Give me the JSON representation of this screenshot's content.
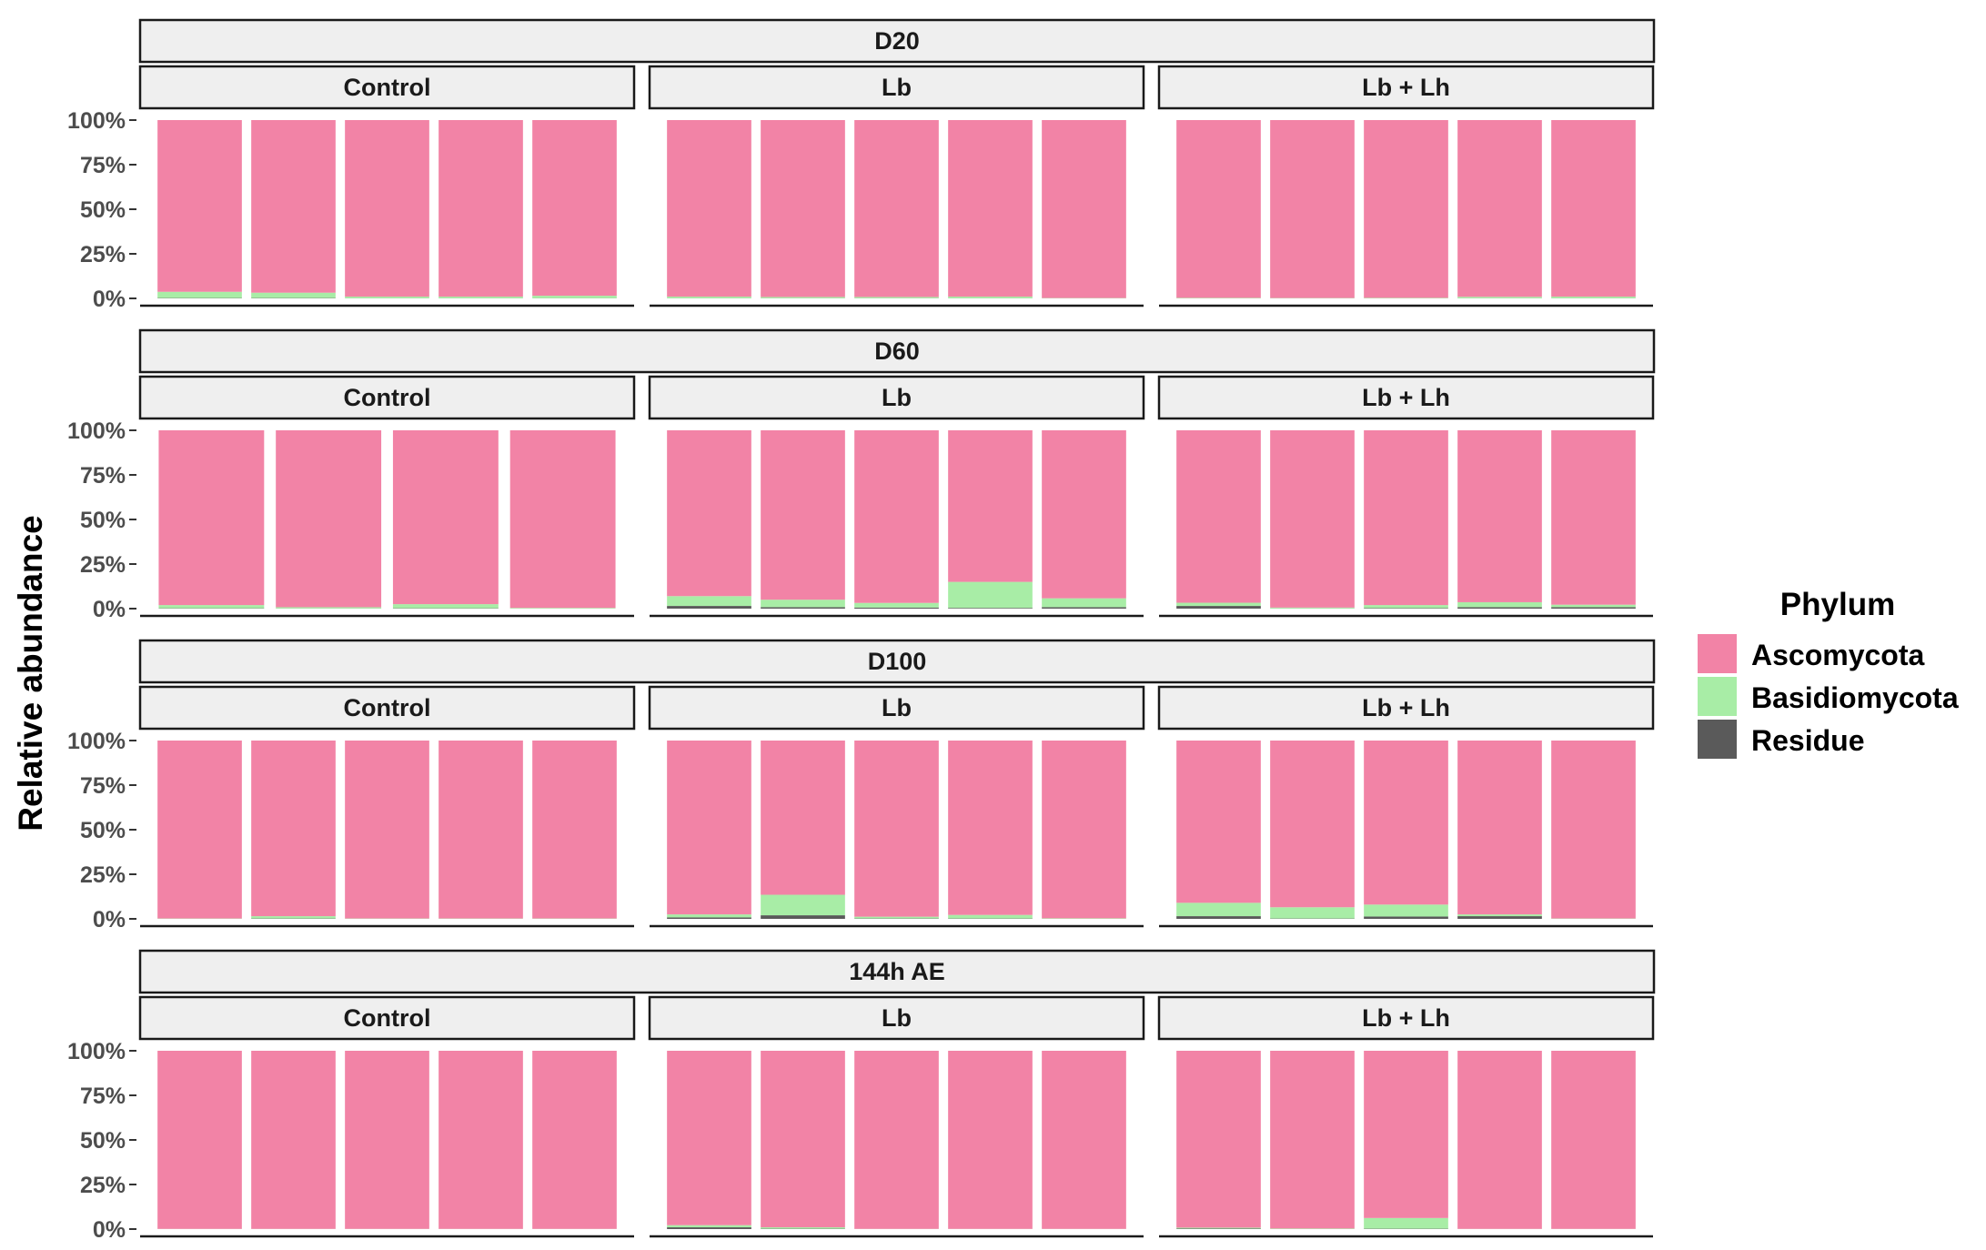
{
  "chart_data": {
    "type": "bar",
    "stacked": true,
    "ylabel": "Relative abundance",
    "ylim": [
      0,
      100
    ],
    "yticks": [
      "0%",
      "25%",
      "50%",
      "75%",
      "100%"
    ],
    "legend": {
      "title": "Phylum",
      "position": "right",
      "entries": [
        {
          "name": "Ascomycota",
          "color": "#F283A6"
        },
        {
          "name": "Basidiomycota",
          "color": "#A8EDA6"
        },
        {
          "name": "Residue",
          "color": "#5A5A5A"
        }
      ]
    },
    "series_order": [
      "Residue",
      "Basidiomycota",
      "Ascomycota"
    ],
    "colors": {
      "Ascomycota": "#F283A6",
      "Basidiomycota": "#A8EDA6",
      "Residue": "#5A5A5A"
    },
    "timepoints": [
      {
        "label": "D20",
        "groups": [
          {
            "label": "Control",
            "bars": [
              {
                "Residue": 0.2,
                "Basidiomycota": 3.5,
                "Ascomycota": 96.3
              },
              {
                "Residue": 0.2,
                "Basidiomycota": 3.0,
                "Ascomycota": 96.8
              },
              {
                "Residue": 0.1,
                "Basidiomycota": 0.9,
                "Ascomycota": 99.0
              },
              {
                "Residue": 0.1,
                "Basidiomycota": 0.9,
                "Ascomycota": 99.0
              },
              {
                "Residue": 0.1,
                "Basidiomycota": 1.4,
                "Ascomycota": 98.5
              }
            ]
          },
          {
            "label": "Lb",
            "bars": [
              {
                "Residue": 0.1,
                "Basidiomycota": 0.9,
                "Ascomycota": 99.0
              },
              {
                "Residue": 0.1,
                "Basidiomycota": 0.7,
                "Ascomycota": 99.2
              },
              {
                "Residue": 0.1,
                "Basidiomycota": 0.7,
                "Ascomycota": 99.2
              },
              {
                "Residue": 0.1,
                "Basidiomycota": 0.9,
                "Ascomycota": 99.0
              },
              {
                "Residue": 0.0,
                "Basidiomycota": 0.2,
                "Ascomycota": 99.8
              }
            ]
          },
          {
            "label": "Lb + Lh",
            "bars": [
              {
                "Residue": 0.0,
                "Basidiomycota": 0.3,
                "Ascomycota": 99.7
              },
              {
                "Residue": 0.0,
                "Basidiomycota": 0.2,
                "Ascomycota": 99.8
              },
              {
                "Residue": 0.0,
                "Basidiomycota": 0.3,
                "Ascomycota": 99.7
              },
              {
                "Residue": 0.1,
                "Basidiomycota": 0.8,
                "Ascomycota": 99.1
              },
              {
                "Residue": 0.1,
                "Basidiomycota": 0.9,
                "Ascomycota": 99.0
              }
            ]
          }
        ]
      },
      {
        "label": "D60",
        "groups": [
          {
            "label": "Control",
            "bars": [
              {
                "Residue": 0.2,
                "Basidiomycota": 1.8,
                "Ascomycota": 98.0
              },
              {
                "Residue": 0.1,
                "Basidiomycota": 0.7,
                "Ascomycota": 99.2
              },
              {
                "Residue": 0.2,
                "Basidiomycota": 2.3,
                "Ascomycota": 97.5
              },
              {
                "Residue": 0.0,
                "Basidiomycota": 0.4,
                "Ascomycota": 99.6
              }
            ]
          },
          {
            "label": "Lb",
            "bars": [
              {
                "Residue": 1.5,
                "Basidiomycota": 5.5,
                "Ascomycota": 93.0
              },
              {
                "Residue": 0.8,
                "Basidiomycota": 4.2,
                "Ascomycota": 95.0
              },
              {
                "Residue": 0.6,
                "Basidiomycota": 2.6,
                "Ascomycota": 96.8
              },
              {
                "Residue": 0.4,
                "Basidiomycota": 14.6,
                "Ascomycota": 85.0
              },
              {
                "Residue": 0.8,
                "Basidiomycota": 5.0,
                "Ascomycota": 94.2
              }
            ]
          },
          {
            "label": "Lb + Lh",
            "bars": [
              {
                "Residue": 1.5,
                "Basidiomycota": 1.8,
                "Ascomycota": 96.7
              },
              {
                "Residue": 0.1,
                "Basidiomycota": 0.5,
                "Ascomycota": 99.4
              },
              {
                "Residue": 0.3,
                "Basidiomycota": 1.7,
                "Ascomycota": 98.0
              },
              {
                "Residue": 0.8,
                "Basidiomycota": 2.8,
                "Ascomycota": 96.4
              },
              {
                "Residue": 0.8,
                "Basidiomycota": 1.4,
                "Ascomycota": 97.8
              }
            ]
          }
        ]
      },
      {
        "label": "D100",
        "groups": [
          {
            "label": "Control",
            "bars": [
              {
                "Residue": 0.0,
                "Basidiomycota": 0.2,
                "Ascomycota": 99.8
              },
              {
                "Residue": 0.2,
                "Basidiomycota": 1.3,
                "Ascomycota": 98.5
              },
              {
                "Residue": 0.0,
                "Basidiomycota": 0.2,
                "Ascomycota": 99.8
              },
              {
                "Residue": 0.0,
                "Basidiomycota": 0.2,
                "Ascomycota": 99.8
              },
              {
                "Residue": 0.0,
                "Basidiomycota": 0.2,
                "Ascomycota": 99.8
              }
            ]
          },
          {
            "label": "Lb",
            "bars": [
              {
                "Residue": 0.8,
                "Basidiomycota": 1.7,
                "Ascomycota": 97.5
              },
              {
                "Residue": 2.0,
                "Basidiomycota": 11.5,
                "Ascomycota": 86.5
              },
              {
                "Residue": 0.2,
                "Basidiomycota": 1.0,
                "Ascomycota": 98.8
              },
              {
                "Residue": 0.2,
                "Basidiomycota": 2.0,
                "Ascomycota": 97.8
              },
              {
                "Residue": 0.0,
                "Basidiomycota": 0.3,
                "Ascomycota": 99.7
              }
            ]
          },
          {
            "label": "Lb + Lh",
            "bars": [
              {
                "Residue": 1.5,
                "Basidiomycota": 7.5,
                "Ascomycota": 91.0
              },
              {
                "Residue": 0.2,
                "Basidiomycota": 6.3,
                "Ascomycota": 93.5
              },
              {
                "Residue": 1.3,
                "Basidiomycota": 6.7,
                "Ascomycota": 92.0
              },
              {
                "Residue": 1.5,
                "Basidiomycota": 1.0,
                "Ascomycota": 97.5
              },
              {
                "Residue": 0.0,
                "Basidiomycota": 0.2,
                "Ascomycota": 99.8
              }
            ]
          }
        ]
      },
      {
        "label": "144h AE",
        "groups": [
          {
            "label": "Control",
            "bars": [
              {
                "Residue": 0.0,
                "Basidiomycota": 0.1,
                "Ascomycota": 99.9
              },
              {
                "Residue": 0.0,
                "Basidiomycota": 0.1,
                "Ascomycota": 99.9
              },
              {
                "Residue": 0.0,
                "Basidiomycota": 0.1,
                "Ascomycota": 99.9
              },
              {
                "Residue": 0.0,
                "Basidiomycota": 0.1,
                "Ascomycota": 99.9
              },
              {
                "Residue": 0.0,
                "Basidiomycota": 0.1,
                "Ascomycota": 99.9
              }
            ]
          },
          {
            "label": "Lb",
            "bars": [
              {
                "Residue": 1.0,
                "Basidiomycota": 1.2,
                "Ascomycota": 97.8
              },
              {
                "Residue": 0.2,
                "Basidiomycota": 0.8,
                "Ascomycota": 99.0
              },
              {
                "Residue": 0.0,
                "Basidiomycota": 0.1,
                "Ascomycota": 99.9
              },
              {
                "Residue": 0.0,
                "Basidiomycota": 0.1,
                "Ascomycota": 99.9
              },
              {
                "Residue": 0.0,
                "Basidiomycota": 0.1,
                "Ascomycota": 99.9
              }
            ]
          },
          {
            "label": "Lb + Lh",
            "bars": [
              {
                "Residue": 0.3,
                "Basidiomycota": 0.5,
                "Ascomycota": 99.2
              },
              {
                "Residue": 0.0,
                "Basidiomycota": 0.3,
                "Ascomycota": 99.7
              },
              {
                "Residue": 0.2,
                "Basidiomycota": 6.0,
                "Ascomycota": 93.8
              },
              {
                "Residue": 0.0,
                "Basidiomycota": 0.1,
                "Ascomycota": 99.9
              },
              {
                "Residue": 0.0,
                "Basidiomycota": 0.1,
                "Ascomycota": 99.9
              }
            ]
          }
        ]
      }
    ]
  }
}
